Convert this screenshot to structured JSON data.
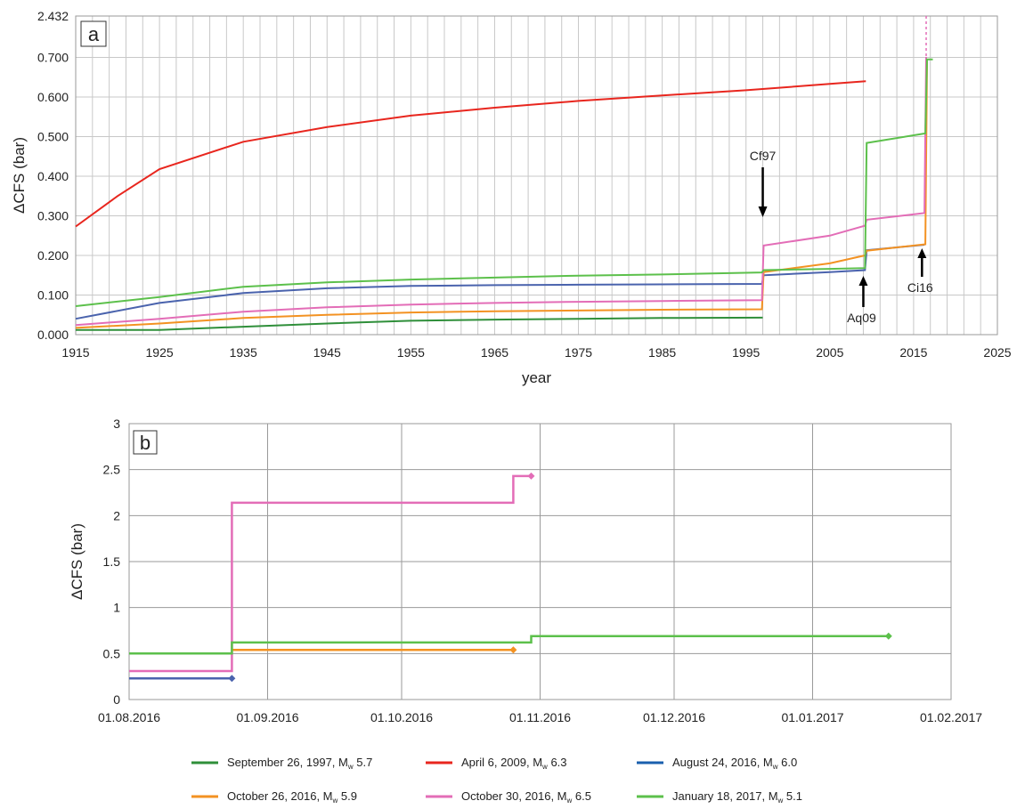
{
  "chart_data": [
    {
      "type": "line",
      "panel_label": "a",
      "xlabel": "year",
      "ylabel": "ΔCFS (bar)",
      "xlim": [
        1915,
        2025
      ],
      "x_ticks": [
        "1915",
        "1925",
        "1935",
        "1945",
        "1955",
        "1965",
        "1975",
        "1985",
        "1995",
        "2005",
        "2015",
        "2025"
      ],
      "y_ticks": [
        "0.000",
        "0.100",
        "0.200",
        "0.300",
        "0.400",
        "0.500",
        "0.600",
        "0.700",
        "2.432"
      ],
      "grid": true,
      "series": [
        {
          "color": "#2f8f3a",
          "points": [
            [
              1915,
              0.012
            ],
            [
              1925,
              0.012
            ],
            [
              1935,
              0.02
            ],
            [
              1945,
              0.028
            ],
            [
              1955,
              0.035
            ],
            [
              1965,
              0.038
            ],
            [
              1975,
              0.04
            ],
            [
              1985,
              0.042
            ],
            [
              1997,
              0.043
            ]
          ]
        },
        {
          "color": "#e8261e",
          "points": [
            [
              1915,
              0.273
            ],
            [
              1920,
              0.35
            ],
            [
              1925,
              0.418
            ],
            [
              1935,
              0.487
            ],
            [
              1945,
              0.524
            ],
            [
              1955,
              0.553
            ],
            [
              1965,
              0.573
            ],
            [
              1975,
              0.59
            ],
            [
              1985,
              0.604
            ],
            [
              1995,
              0.617
            ],
            [
              2005,
              0.633
            ],
            [
              2009.3,
              0.64
            ]
          ]
        },
        {
          "color": "#4a63ad",
          "points": [
            [
              1915,
              0.04
            ],
            [
              1925,
              0.08
            ],
            [
              1935,
              0.105
            ],
            [
              1945,
              0.117
            ],
            [
              1955,
              0.123
            ],
            [
              1965,
              0.125
            ],
            [
              1975,
              0.126
            ],
            [
              1985,
              0.127
            ],
            [
              1996.9,
              0.128
            ],
            [
              1997.1,
              0.15
            ],
            [
              2005,
              0.158
            ],
            [
              2009.2,
              0.163
            ],
            [
              2009.4,
              0.213
            ],
            [
              2016.3,
              0.227
            ]
          ]
        },
        {
          "color": "#f39222",
          "points": [
            [
              1915,
              0.017
            ],
            [
              1925,
              0.028
            ],
            [
              1935,
              0.042
            ],
            [
              1945,
              0.05
            ],
            [
              1955,
              0.056
            ],
            [
              1965,
              0.059
            ],
            [
              1975,
              0.061
            ],
            [
              1985,
              0.063
            ],
            [
              1996.9,
              0.064
            ],
            [
              1997.1,
              0.158
            ],
            [
              2005,
              0.18
            ],
            [
              2009.2,
              0.2
            ],
            [
              2009.4,
              0.212
            ],
            [
              2016.4,
              0.228
            ],
            [
              2016.6,
              0.69
            ]
          ]
        },
        {
          "color": "#e36db7",
          "points": [
            [
              1915,
              0.024
            ],
            [
              1925,
              0.04
            ],
            [
              1935,
              0.058
            ],
            [
              1945,
              0.069
            ],
            [
              1955,
              0.076
            ],
            [
              1965,
              0.08
            ],
            [
              1975,
              0.083
            ],
            [
              1985,
              0.085
            ],
            [
              1996.9,
              0.087
            ],
            [
              1997.1,
              0.225
            ],
            [
              2005,
              0.25
            ],
            [
              2009.2,
              0.275
            ],
            [
              2009.4,
              0.29
            ],
            [
              2016.3,
              0.307
            ],
            [
              2016.5,
              0.72
            ]
          ]
        },
        {
          "color": "#5cc04b",
          "points": [
            [
              1915,
              0.072
            ],
            [
              1925,
              0.095
            ],
            [
              1935,
              0.121
            ],
            [
              1945,
              0.132
            ],
            [
              1955,
              0.139
            ],
            [
              1965,
              0.144
            ],
            [
              1975,
              0.149
            ],
            [
              1985,
              0.152
            ],
            [
              1996.9,
              0.157
            ],
            [
              1997.1,
              0.163
            ],
            [
              2005,
              0.166
            ],
            [
              2009.2,
              0.168
            ],
            [
              2009.4,
              0.484
            ],
            [
              2016.4,
              0.508
            ],
            [
              2016.6,
              0.695
            ],
            [
              2017.3,
              0.695
            ]
          ]
        }
      ],
      "annotations": [
        {
          "text": "Cf97",
          "x": 1997
        },
        {
          "text": "Aq09",
          "x": 2009
        },
        {
          "text": "Ci16",
          "x": 2016
        }
      ]
    },
    {
      "type": "line",
      "panel_label": "b",
      "ylabel": "ΔCFS (bar)",
      "ylim": [
        0,
        3
      ],
      "x_ticks": [
        "01.08.2016",
        "01.09.2016",
        "01.10.2016",
        "01.11.2016",
        "01.12.2016",
        "01.01.2017",
        "01.02.2017"
      ],
      "x_start": "01.08.2016",
      "x_end": "01.02.2017",
      "y_ticks": [
        "0",
        "0.5",
        "1",
        "1.5",
        "2",
        "2.5",
        "3"
      ],
      "grid": true,
      "series": [
        {
          "color": "#4a63ad",
          "points": [
            [
              "01.08.2016",
              0.23
            ],
            [
              "24.08.2016",
              0.23
            ]
          ]
        },
        {
          "color": "#e36db7",
          "points": [
            [
              "01.08.2016",
              0.31
            ],
            [
              "24.08.2016",
              0.31
            ],
            [
              "24.08.2016",
              2.14
            ],
            [
              "26.10.2016",
              2.14
            ],
            [
              "26.10.2016",
              2.43
            ],
            [
              "30.10.2016",
              2.43
            ]
          ]
        },
        {
          "color": "#f39222",
          "points": [
            [
              "24.08.2016",
              0.54
            ],
            [
              "26.10.2016",
              0.54
            ]
          ]
        },
        {
          "color": "#5cc04b",
          "points": [
            [
              "01.08.2016",
              0.5
            ],
            [
              "24.08.2016",
              0.5
            ],
            [
              "24.08.2016",
              0.62
            ],
            [
              "30.10.2016",
              0.62
            ],
            [
              "30.10.2016",
              0.69
            ],
            [
              "18.01.2017",
              0.69
            ]
          ]
        }
      ]
    }
  ],
  "legend": [
    {
      "color": "#2f8f3a",
      "label": "September 26, 1997, M",
      "sub": "w",
      "mag": "5.7"
    },
    {
      "color": "#e8261e",
      "label": "April 6, 2009, M",
      "sub": "w",
      "mag": "6.3"
    },
    {
      "color": "#1a5fae",
      "label": "August 24, 2016, M",
      "sub": "w",
      "mag": "6.0"
    },
    {
      "color": "#f39222",
      "label": "October 26, 2016, M",
      "sub": "w",
      "mag": "5.9"
    },
    {
      "color": "#e36db7",
      "label": "October 30, 2016, M",
      "sub": "w",
      "mag": "6.5"
    },
    {
      "color": "#5cc04b",
      "label": "January 18, 2017, M",
      "sub": "w",
      "mag": "5.1"
    }
  ]
}
